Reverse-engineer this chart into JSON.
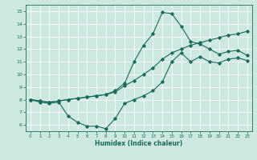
{
  "xlabel": "Humidex (Indice chaleur)",
  "xlim": [
    -0.5,
    23.5
  ],
  "ylim": [
    5.5,
    15.5
  ],
  "xticks": [
    0,
    1,
    2,
    3,
    4,
    5,
    6,
    7,
    8,
    9,
    10,
    11,
    12,
    13,
    14,
    15,
    16,
    17,
    18,
    19,
    20,
    21,
    22,
    23
  ],
  "yticks": [
    6,
    7,
    8,
    9,
    10,
    11,
    12,
    13,
    14,
    15
  ],
  "bg_color": "#cce8e0",
  "line_color": "#1a6b5a",
  "grid_color": "#ffffff",
  "line1_x": [
    0,
    1,
    2,
    3,
    4,
    5,
    6,
    7,
    8,
    9,
    10,
    11,
    12,
    13,
    14,
    15,
    16,
    17,
    18,
    19,
    20,
    21,
    22,
    23
  ],
  "line1_y": [
    8.0,
    7.8,
    7.7,
    7.8,
    6.7,
    6.2,
    5.9,
    5.9,
    5.7,
    6.5,
    7.7,
    8.0,
    8.3,
    8.7,
    9.4,
    11.0,
    11.7,
    11.0,
    11.4,
    11.0,
    10.9,
    11.2,
    11.3,
    11.1
  ],
  "line2_x": [
    0,
    1,
    2,
    3,
    4,
    5,
    6,
    7,
    8,
    9,
    10,
    11,
    12,
    13,
    14,
    15,
    16,
    17,
    18,
    19,
    20,
    21,
    22,
    23
  ],
  "line2_y": [
    8.0,
    7.9,
    7.8,
    7.9,
    8.0,
    8.1,
    8.2,
    8.3,
    8.4,
    8.6,
    9.1,
    9.5,
    10.0,
    10.5,
    11.2,
    11.7,
    12.0,
    12.3,
    12.5,
    12.7,
    12.9,
    13.1,
    13.2,
    13.4
  ],
  "line3_x": [
    0,
    1,
    2,
    3,
    4,
    5,
    6,
    7,
    8,
    9,
    10,
    11,
    12,
    13,
    14,
    15,
    16,
    17,
    18,
    19,
    20,
    21,
    22,
    23
  ],
  "line3_y": [
    8.0,
    7.9,
    7.8,
    7.9,
    8.0,
    8.1,
    8.2,
    8.3,
    8.4,
    8.7,
    9.3,
    11.0,
    12.3,
    13.2,
    14.9,
    14.8,
    13.8,
    12.6,
    12.4,
    12.0,
    11.6,
    11.8,
    11.9,
    11.5
  ]
}
